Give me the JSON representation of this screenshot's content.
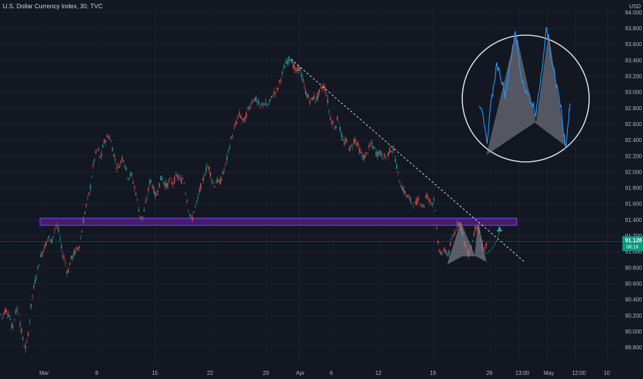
{
  "header": {
    "symbol_label": "U.S. Dollar Currency Index, 30, TVC"
  },
  "currency_label": "USD",
  "price_badge": {
    "price": "91.128",
    "countdown": "06:16",
    "color": "#089981"
  },
  "colors": {
    "background": "#131722",
    "up": "#26a69a",
    "down": "#ef5350",
    "zone": "#7b1fa2",
    "zone_border": "#5b5cf0",
    "inset_line": "#2196f3",
    "trend": "#e0e3eb"
  },
  "chart_data": {
    "type": "candlestick",
    "title": "",
    "xlabel": "",
    "ylabel": "",
    "ylim": [
      89.75,
      94.05
    ],
    "y_ticks": [
      "94.000",
      "93.800",
      "93.600",
      "93.400",
      "93.200",
      "93.000",
      "92.800",
      "92.600",
      "92.400",
      "92.200",
      "92.000",
      "91.800",
      "91.600",
      "91.400",
      "91.200",
      "91.000",
      "90.800",
      "90.600",
      "90.400",
      "90.200",
      "90.000",
      "89.800"
    ],
    "x_ticks": [
      "Mar",
      "8",
      "15",
      "22",
      "29",
      "Apr",
      "6",
      "12",
      "19",
      "26",
      "13:00",
      "May",
      "12:00",
      "10"
    ],
    "price_path": [
      [
        0,
        90.23
      ],
      [
        3,
        90.18
      ],
      [
        8,
        90.28
      ],
      [
        14,
        90.2
      ],
      [
        18,
        90.02
      ],
      [
        22,
        90.22
      ],
      [
        26,
        90.3
      ],
      [
        30,
        90.05
      ],
      [
        34,
        89.85
      ],
      [
        38,
        89.78
      ],
      [
        42,
        90.05
      ],
      [
        46,
        90.4
      ],
      [
        50,
        90.6
      ],
      [
        54,
        90.75
      ],
      [
        58,
        90.9
      ],
      [
        62,
        91.02
      ],
      [
        66,
        91.08
      ],
      [
        70,
        91.2
      ],
      [
        74,
        91.1
      ],
      [
        78,
        91.25
      ],
      [
        82,
        91.35
      ],
      [
        86,
        91.22
      ],
      [
        90,
        90.98
      ],
      [
        94,
        90.9
      ],
      [
        98,
        90.72
      ],
      [
        102,
        90.9
      ],
      [
        106,
        90.95
      ],
      [
        110,
        91.02
      ],
      [
        114,
        91.05
      ],
      [
        118,
        91.2
      ],
      [
        122,
        91.45
      ],
      [
        126,
        91.62
      ],
      [
        130,
        91.75
      ],
      [
        134,
        92.02
      ],
      [
        138,
        92.2
      ],
      [
        142,
        92.3
      ],
      [
        146,
        92.15
      ],
      [
        150,
        92.36
      ],
      [
        154,
        92.42
      ],
      [
        158,
        92.46
      ],
      [
        162,
        92.34
      ],
      [
        166,
        92.18
      ],
      [
        170,
        92.05
      ],
      [
        174,
        92.1
      ],
      [
        178,
        92.2
      ],
      [
        182,
        92.06
      ],
      [
        186,
        91.92
      ],
      [
        190,
        91.98
      ],
      [
        194,
        91.84
      ],
      [
        198,
        91.7
      ],
      [
        202,
        91.48
      ],
      [
        206,
        91.4
      ],
      [
        210,
        91.55
      ],
      [
        214,
        91.72
      ],
      [
        218,
        91.92
      ],
      [
        222,
        91.8
      ],
      [
        226,
        91.68
      ],
      [
        230,
        91.82
      ],
      [
        234,
        91.94
      ],
      [
        238,
        91.86
      ],
      [
        242,
        91.82
      ],
      [
        246,
        91.9
      ],
      [
        250,
        91.85
      ],
      [
        254,
        91.92
      ],
      [
        258,
        91.95
      ],
      [
        262,
        91.88
      ],
      [
        266,
        91.93
      ],
      [
        270,
        91.7
      ],
      [
        274,
        91.5
      ],
      [
        278,
        91.38
      ],
      [
        282,
        91.55
      ],
      [
        286,
        91.62
      ],
      [
        290,
        91.8
      ],
      [
        294,
        91.88
      ],
      [
        298,
        92.02
      ],
      [
        302,
        92.08
      ],
      [
        306,
        91.95
      ],
      [
        310,
        91.82
      ],
      [
        314,
        91.9
      ],
      [
        318,
        91.85
      ],
      [
        322,
        91.95
      ],
      [
        326,
        92.05
      ],
      [
        330,
        92.2
      ],
      [
        334,
        92.38
      ],
      [
        338,
        92.5
      ],
      [
        342,
        92.6
      ],
      [
        346,
        92.72
      ],
      [
        350,
        92.68
      ],
      [
        354,
        92.62
      ],
      [
        358,
        92.75
      ],
      [
        362,
        92.82
      ],
      [
        366,
        92.9
      ],
      [
        370,
        92.92
      ],
      [
        374,
        92.86
      ],
      [
        378,
        92.8
      ],
      [
        382,
        92.88
      ],
      [
        386,
        92.82
      ],
      [
        390,
        92.85
      ],
      [
        394,
        92.95
      ],
      [
        398,
        93.0
      ],
      [
        402,
        93.02
      ],
      [
        406,
        93.15
      ],
      [
        410,
        93.25
      ],
      [
        414,
        93.35
      ],
      [
        418,
        93.4
      ],
      [
        422,
        93.44
      ],
      [
        426,
        93.3
      ],
      [
        430,
        93.25
      ],
      [
        434,
        93.32
      ],
      [
        438,
        93.18
      ],
      [
        442,
        93.02
      ],
      [
        446,
        92.95
      ],
      [
        450,
        92.88
      ],
      [
        454,
        92.94
      ],
      [
        458,
        92.9
      ],
      [
        462,
        92.98
      ],
      [
        466,
        93.05
      ],
      [
        470,
        93.08
      ],
      [
        474,
        92.95
      ],
      [
        478,
        92.7
      ],
      [
        482,
        92.62
      ],
      [
        486,
        92.55
      ],
      [
        490,
        92.7
      ],
      [
        494,
        92.48
      ],
      [
        498,
        92.35
      ],
      [
        502,
        92.4
      ],
      [
        506,
        92.28
      ],
      [
        510,
        92.32
      ],
      [
        514,
        92.42
      ],
      [
        518,
        92.35
      ],
      [
        522,
        92.25
      ],
      [
        526,
        92.18
      ],
      [
        530,
        92.2
      ],
      [
        534,
        92.28
      ],
      [
        538,
        92.35
      ],
      [
        542,
        92.3
      ],
      [
        546,
        92.22
      ],
      [
        550,
        92.25
      ],
      [
        554,
        92.2
      ],
      [
        558,
        92.18
      ],
      [
        562,
        92.22
      ],
      [
        566,
        92.28
      ],
      [
        570,
        92.3
      ],
      [
        574,
        92.12
      ],
      [
        578,
        91.92
      ],
      [
        582,
        91.82
      ],
      [
        586,
        91.75
      ],
      [
        590,
        91.7
      ],
      [
        594,
        91.65
      ],
      [
        598,
        91.62
      ],
      [
        602,
        91.58
      ],
      [
        606,
        91.66
      ],
      [
        610,
        91.62
      ],
      [
        614,
        91.55
      ],
      [
        618,
        91.72
      ],
      [
        622,
        91.65
      ],
      [
        626,
        91.6
      ],
      [
        630,
        91.68
      ],
      [
        632,
        91.42
      ],
      [
        634,
        91.12
      ],
      [
        638,
        91.0
      ],
      [
        642,
        90.98
      ],
      [
        646,
        91.02
      ],
      [
        650,
        90.95
      ],
      [
        654,
        91.12
      ],
      [
        658,
        91.22
      ],
      [
        662,
        91.32
      ],
      [
        666,
        91.38
      ],
      [
        670,
        91.25
      ],
      [
        674,
        91.08
      ],
      [
        678,
        90.96
      ],
      [
        682,
        91.02
      ],
      [
        686,
        91.18
      ],
      [
        690,
        91.34
      ],
      [
        694,
        91.28
      ],
      [
        698,
        91.1
      ],
      [
        702,
        91.02
      ],
      [
        705,
        91.08
      ]
    ],
    "support_zone": [
      91.33,
      91.42
    ],
    "annotations": {
      "current_price": 91.128
    }
  }
}
